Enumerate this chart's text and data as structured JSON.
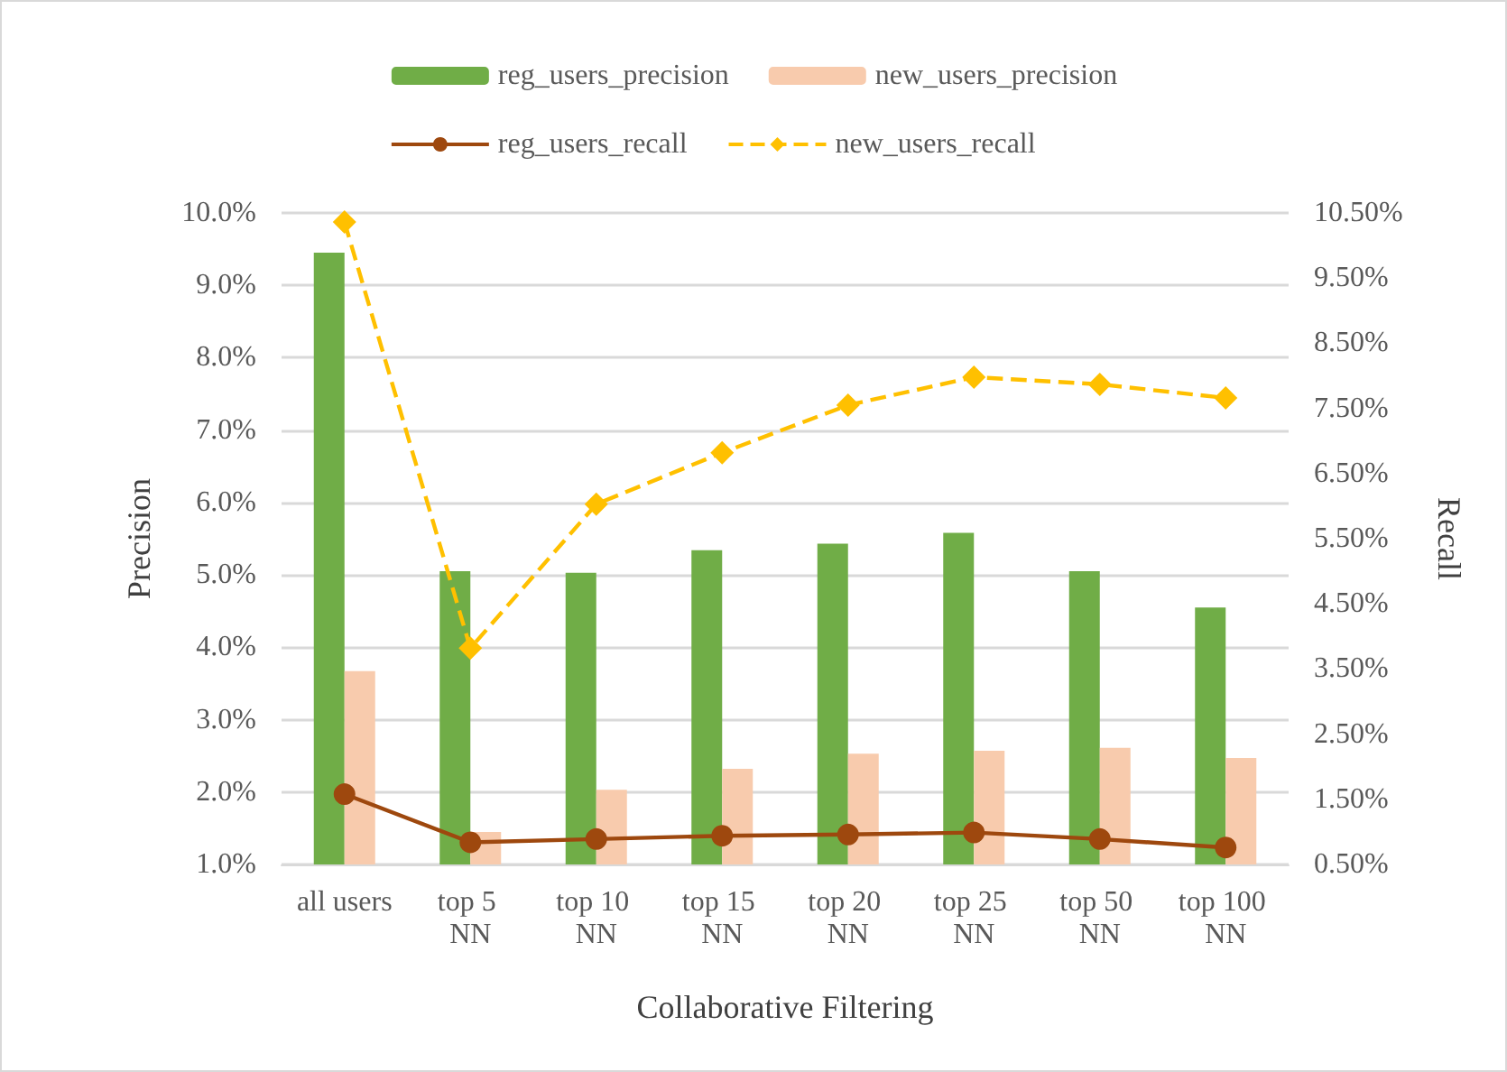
{
  "chart_data": {
    "type": "bar",
    "xlabel": "Collaborative Filtering",
    "ylabel": "Precision",
    "y2label": "Recall",
    "categories": [
      "all users",
      "top 5 NN",
      "top 10 NN",
      "top 15 NN",
      "top 20 NN",
      "top 25 NN",
      "top 50 NN",
      "top 100 NN"
    ],
    "series": [
      {
        "name": "reg_users_precision",
        "color": "#70ad47",
        "values": [
          9.45,
          5.05,
          5.03,
          5.34,
          5.43,
          5.58,
          5.05,
          4.55
        ]
      },
      {
        "name": "new_users_precision",
        "color": "#f8cbad",
        "values": [
          3.67,
          1.45,
          2.03,
          2.32,
          2.53,
          2.57,
          2.61,
          2.47
        ]
      },
      {
        "name": "reg_users_recall",
        "type": "line",
        "axis": "y2",
        "color": "#9e480e",
        "marker": "circle",
        "line_style": "solid",
        "values": [
          1.58,
          0.84,
          0.89,
          0.94,
          0.96,
          0.99,
          0.89,
          0.76
        ]
      },
      {
        "name": "new_users_recall",
        "type": "line",
        "axis": "y2",
        "color": "#ffc000",
        "marker": "diamond",
        "line_style": "dashed",
        "values": [
          10.36,
          3.82,
          6.03,
          6.82,
          7.55,
          7.98,
          7.87,
          7.66
        ]
      }
    ],
    "ylim": [
      1,
      10
    ],
    "yticks": [
      {
        "value": 1,
        "label": "1.0%"
      },
      {
        "value": 2,
        "label": "2.0%"
      },
      {
        "value": 3,
        "label": "3.0%"
      },
      {
        "value": 4,
        "label": "4.0%"
      },
      {
        "value": 5,
        "label": "5.0%"
      },
      {
        "value": 6,
        "label": "6.0%"
      },
      {
        "value": 7,
        "label": "7.0%"
      },
      {
        "value": 8,
        "label": "8.0%"
      },
      {
        "value": 9,
        "label": "9.0%"
      },
      {
        "value": 10,
        "label": "10.0%"
      }
    ],
    "y2lim": [
      0.5,
      10.5
    ],
    "y2ticks": [
      {
        "value": 0.5,
        "label": "0.50%"
      },
      {
        "value": 1.5,
        "label": "1.50%"
      },
      {
        "value": 2.5,
        "label": "2.50%"
      },
      {
        "value": 3.5,
        "label": "3.50%"
      },
      {
        "value": 4.5,
        "label": "4.50%"
      },
      {
        "value": 5.5,
        "label": "5.50%"
      },
      {
        "value": 6.5,
        "label": "6.50%"
      },
      {
        "value": 7.5,
        "label": "7.50%"
      },
      {
        "value": 8.5,
        "label": "8.50%"
      },
      {
        "value": 9.5,
        "label": "9.50%"
      },
      {
        "value": 10.5,
        "label": "10.50%"
      }
    ],
    "grid": "y",
    "legend": "top"
  }
}
